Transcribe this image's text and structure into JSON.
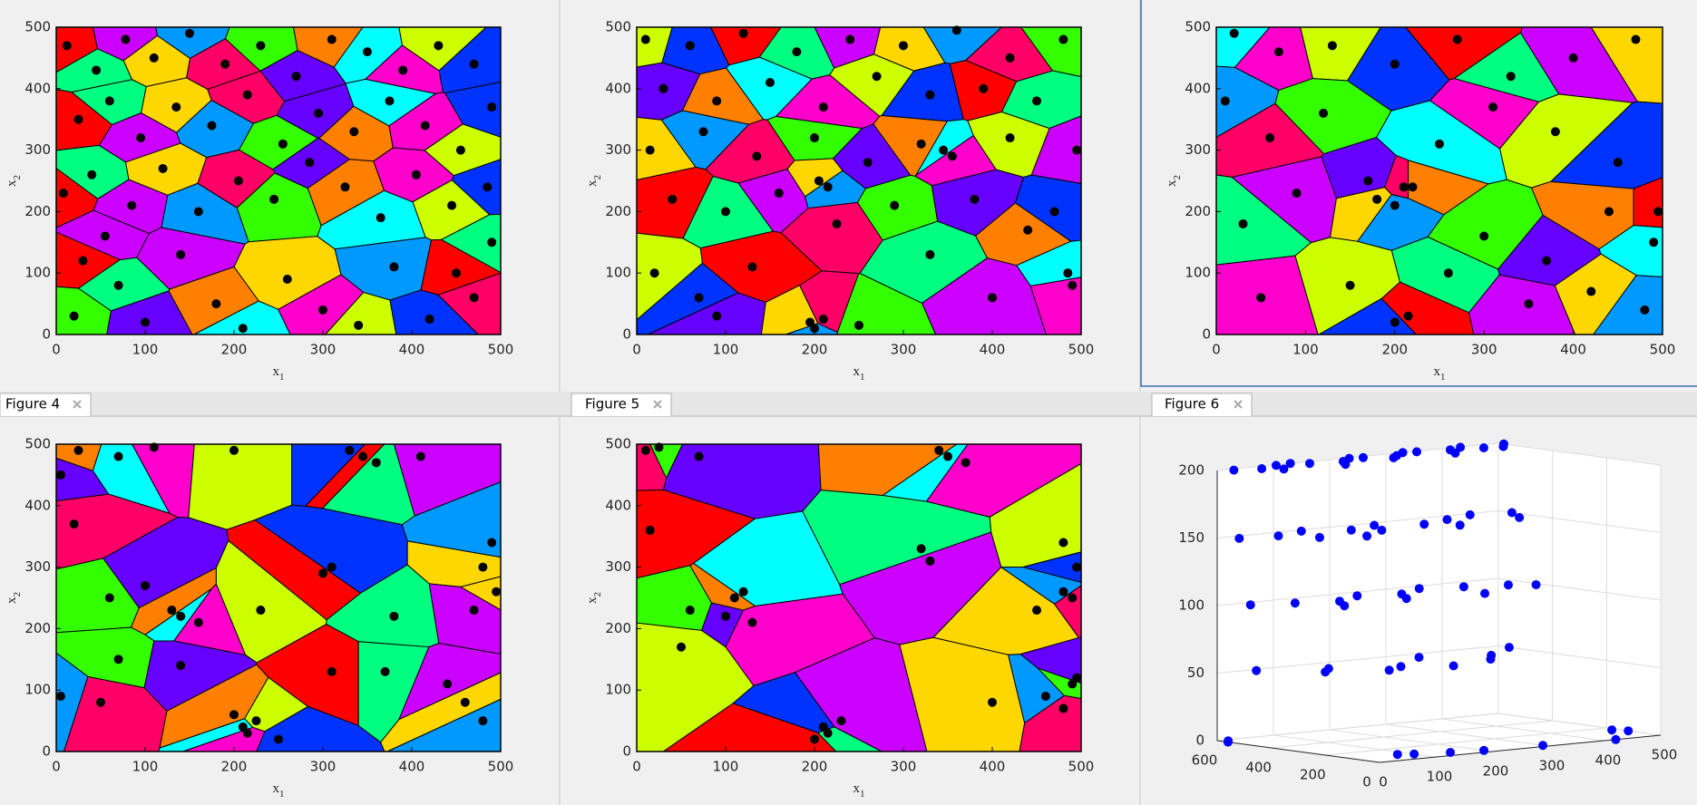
{
  "tabs": [
    "Figure 4",
    "Figure 5",
    "Figure 6"
  ],
  "palette": [
    "#ff0000",
    "#ff8000",
    "#ffd700",
    "#ccff00",
    "#33ff00",
    "#00ff80",
    "#00ffff",
    "#0099ff",
    "#0033ff",
    "#6600ff",
    "#cc00ff",
    "#ff00cc",
    "#ff0066"
  ],
  "chart_data": [
    {
      "type": "voronoi",
      "xlim": [
        0,
        500
      ],
      "ylim": [
        0,
        500
      ],
      "xticks": [
        0,
        100,
        200,
        300,
        400,
        500
      ],
      "yticks": [
        0,
        100,
        200,
        300,
        400,
        500
      ],
      "xlabel": [
        "x",
        "1"
      ],
      "ylabel": [
        "x",
        "2"
      ],
      "points": {
        "x": [
          12,
          45,
          78,
          110,
          150,
          190,
          230,
          270,
          310,
          350,
          390,
          430,
          470,
          25,
          60,
          95,
          135,
          175,
          215,
          255,
          295,
          335,
          375,
          415,
          455,
          490,
          8,
          40,
          85,
          120,
          160,
          205,
          245,
          285,
          325,
          365,
          405,
          445,
          485,
          30,
          70,
          140,
          260,
          380,
          470,
          20,
          100,
          180,
          210,
          300,
          340,
          420,
          450,
          490,
          55
        ],
        "y": [
          470,
          430,
          480,
          450,
          490,
          440,
          470,
          420,
          480,
          460,
          430,
          470,
          440,
          350,
          380,
          320,
          370,
          340,
          390,
          310,
          360,
          330,
          380,
          340,
          300,
          370,
          230,
          260,
          210,
          270,
          200,
          250,
          220,
          280,
          240,
          190,
          260,
          210,
          240,
          120,
          80,
          130,
          90,
          110,
          60,
          30,
          20,
          50,
          10,
          40,
          15,
          25,
          100,
          150,
          160
        ]
      }
    },
    {
      "type": "voronoi",
      "xlim": [
        0,
        500
      ],
      "ylim": [
        0,
        500
      ],
      "xticks": [
        0,
        100,
        200,
        300,
        400,
        500
      ],
      "yticks": [
        0,
        100,
        200,
        300,
        400,
        500
      ],
      "xlabel": [
        "x",
        "1"
      ],
      "ylabel": [
        "x",
        "2"
      ],
      "points": {
        "x": [
          10,
          60,
          120,
          180,
          240,
          300,
          360,
          420,
          480,
          30,
          90,
          150,
          210,
          270,
          330,
          390,
          450,
          495,
          15,
          75,
          135,
          200,
          260,
          320,
          345,
          355,
          420,
          470,
          40,
          100,
          160,
          205,
          215,
          225,
          290,
          380,
          440,
          485,
          490,
          20,
          70,
          130,
          330,
          400,
          195,
          200,
          210,
          250,
          90
        ],
        "y": [
          480,
          470,
          490,
          460,
          480,
          470,
          495,
          450,
          480,
          400,
          380,
          410,
          370,
          420,
          390,
          400,
          380,
          300,
          300,
          330,
          290,
          320,
          280,
          310,
          300,
          290,
          320,
          200,
          220,
          200,
          230,
          250,
          240,
          180,
          210,
          220,
          170,
          100,
          80,
          100,
          60,
          110,
          130,
          60,
          20,
          10,
          25,
          15,
          30
        ]
      }
    },
    {
      "type": "voronoi",
      "xlim": [
        0,
        500
      ],
      "ylim": [
        0,
        500
      ],
      "xticks": [
        0,
        100,
        200,
        300,
        400,
        500
      ],
      "yticks": [
        0,
        100,
        200,
        300,
        400,
        500
      ],
      "xlabel": [
        "x",
        "1"
      ],
      "ylabel": [
        "x",
        "2"
      ],
      "points": {
        "x": [
          20,
          70,
          130,
          200,
          270,
          330,
          400,
          470,
          10,
          60,
          120,
          170,
          220,
          250,
          310,
          380,
          450,
          495,
          30,
          90,
          180,
          200,
          210,
          300,
          370,
          440,
          490,
          50,
          150,
          200,
          215,
          260,
          350,
          420,
          480
        ],
        "y": [
          490,
          460,
          470,
          440,
          480,
          420,
          450,
          480,
          380,
          320,
          360,
          250,
          240,
          310,
          370,
          330,
          280,
          200,
          180,
          230,
          220,
          210,
          240,
          160,
          120,
          200,
          150,
          60,
          80,
          20,
          30,
          100,
          50,
          70,
          40
        ]
      }
    },
    {
      "type": "voronoi",
      "xlim": [
        0,
        500
      ],
      "ylim": [
        0,
        500
      ],
      "xticks": [
        0,
        100,
        200,
        300,
        400,
        500
      ],
      "yticks": [
        0,
        100,
        200,
        300,
        400,
        500
      ],
      "xlabel": [
        "x",
        "1"
      ],
      "ylabel": [
        "x",
        "2"
      ],
      "points": {
        "x": [
          5,
          25,
          70,
          110,
          200,
          330,
          345,
          360,
          410,
          480,
          490,
          20,
          60,
          100,
          130,
          140,
          160,
          230,
          310,
          300,
          380,
          470,
          495,
          5,
          50,
          70,
          140,
          200,
          210,
          215,
          225,
          250,
          310,
          370,
          440,
          460,
          480
        ],
        "y": [
          450,
          490,
          480,
          495,
          490,
          490,
          480,
          470,
          480,
          300,
          340,
          370,
          250,
          270,
          230,
          220,
          210,
          230,
          300,
          290,
          220,
          230,
          260,
          90,
          80,
          150,
          140,
          60,
          40,
          30,
          50,
          20,
          130,
          130,
          110,
          80,
          50
        ]
      }
    },
    {
      "type": "voronoi",
      "xlim": [
        0,
        500
      ],
      "ylim": [
        0,
        500
      ],
      "xticks": [
        0,
        100,
        200,
        300,
        400,
        500
      ],
      "yticks": [
        0,
        100,
        200,
        300,
        400,
        500
      ],
      "xlabel": [
        "x",
        "1"
      ],
      "ylabel": [
        "x",
        "2"
      ],
      "points": {
        "x": [
          10,
          25,
          70,
          340,
          350,
          370,
          480,
          495,
          15,
          320,
          330,
          450,
          480,
          490,
          60,
          100,
          110,
          120,
          130,
          50,
          210,
          200,
          215,
          230,
          400,
          460,
          480,
          490,
          495
        ],
        "y": [
          490,
          495,
          480,
          490,
          480,
          470,
          340,
          300,
          360,
          330,
          310,
          230,
          260,
          250,
          230,
          220,
          250,
          260,
          210,
          170,
          40,
          20,
          30,
          50,
          80,
          90,
          70,
          110,
          120
        ]
      }
    },
    {
      "type": "scatter3d",
      "color": "#0000ff",
      "grid": true,
      "xlim": [
        0,
        500
      ],
      "ylim": [
        0,
        600
      ],
      "zlim": [
        0,
        200
      ],
      "xticks": [
        0,
        100,
        200,
        300,
        400,
        500
      ],
      "yticks": [
        0,
        200,
        400,
        600
      ],
      "zticks": [
        0,
        50,
        100,
        150,
        200
      ],
      "x": [
        20,
        60,
        100,
        150,
        200,
        250,
        300,
        350,
        400,
        450,
        500,
        80,
        180,
        280,
        380,
        480,
        130,
        230,
        330,
        430,
        20,
        80,
        140,
        200,
        260,
        320,
        380,
        440,
        500,
        110,
        230,
        350,
        470,
        170,
        40,
        100,
        160,
        220,
        280,
        340,
        400,
        460,
        130,
        250,
        370,
        490,
        60,
        150,
        240,
        330,
        420,
        500,
        200,
        300,
        390,
        120,
        0,
        10,
        80,
        100,
        150,
        200,
        300,
        420,
        500,
        490
      ],
      "y": [
        580,
        560,
        590,
        570,
        550,
        580,
        560,
        590,
        570,
        550,
        580,
        520,
        500,
        530,
        510,
        540,
        600,
        590,
        600,
        595,
        560,
        540,
        580,
        520,
        560,
        500,
        540,
        580,
        550,
        450,
        470,
        430,
        460,
        400,
        560,
        520,
        480,
        540,
        500,
        560,
        520,
        480,
        400,
        420,
        380,
        440,
        580,
        500,
        420,
        540,
        460,
        560,
        380,
        350,
        400,
        450,
        560,
        580,
        100,
        80,
        50,
        30,
        20,
        0,
        120,
        160
      ],
      "z": [
        200,
        200,
        200,
        200,
        200,
        200,
        200,
        200,
        200,
        200,
        200,
        200,
        200,
        200,
        200,
        200,
        200,
        200,
        200,
        200,
        150,
        150,
        150,
        150,
        150,
        150,
        150,
        150,
        150,
        150,
        150,
        150,
        150,
        150,
        100,
        100,
        100,
        100,
        100,
        100,
        100,
        100,
        100,
        100,
        100,
        100,
        50,
        50,
        50,
        50,
        50,
        50,
        50,
        50,
        50,
        50,
        0,
        0,
        0,
        0,
        0,
        0,
        0,
        0,
        0,
        0
      ]
    }
  ]
}
